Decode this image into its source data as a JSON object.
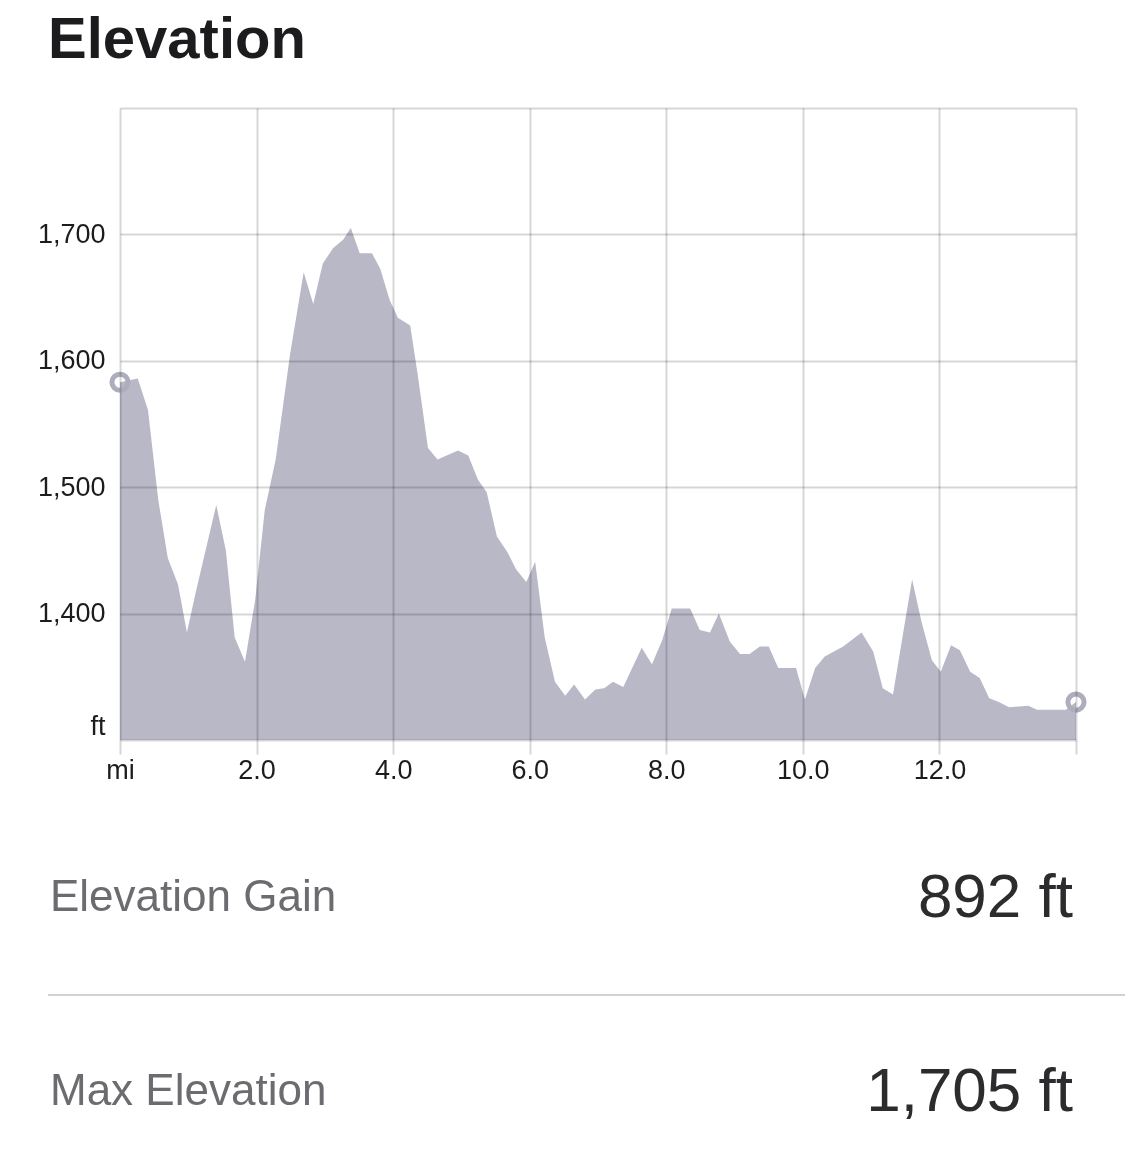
{
  "chart_data": {
    "type": "area",
    "title": "Elevation",
    "xlim": [
      0,
      14
    ],
    "xticks": [
      {
        "value": 0,
        "label": "mi"
      },
      {
        "value": 2,
        "label": "2.0"
      },
      {
        "value": 4,
        "label": "4.0"
      },
      {
        "value": 6,
        "label": "6.0"
      },
      {
        "value": 8,
        "label": "8.0"
      },
      {
        "value": 10,
        "label": "10.0"
      },
      {
        "value": 12,
        "label": "12.0"
      },
      {
        "value": 14,
        "label": null
      }
    ],
    "ylim": [
      1300,
      1800
    ],
    "yticks": [
      {
        "value": 1300,
        "label": "ft"
      },
      {
        "value": 1400,
        "label": "1,400"
      },
      {
        "value": 1500,
        "label": "1,500"
      },
      {
        "value": 1600,
        "label": "1,600"
      },
      {
        "value": 1700,
        "label": "1,700"
      },
      {
        "value": 1800,
        "label": null
      }
    ],
    "grid": true,
    "series": [
      {
        "color": "#b9b8c7",
        "x": [
          0,
          0.26,
          0.41,
          0.56,
          0.7,
          0.85,
          0.98,
          1.11,
          1.41,
          1.55,
          1.68,
          1.83,
          1.98,
          2.12,
          2.28,
          2.49,
          2.69,
          2.83,
          2.97,
          3.12,
          3.27,
          3.38,
          3.51,
          3.69,
          3.81,
          3.95,
          4.07,
          4.25,
          4.36,
          4.51,
          4.65,
          4.95,
          5.1,
          5.24,
          5.37,
          5.52,
          5.67,
          5.8,
          5.95,
          6.08,
          6.22,
          6.37,
          6.52,
          6.65,
          6.81,
          6.96,
          7.09,
          7.22,
          7.37,
          7.64,
          7.79,
          7.94,
          8.08,
          8.35,
          8.49,
          8.64,
          8.77,
          8.93,
          9.08,
          9.22,
          9.37,
          9.5,
          9.64,
          9.9,
          10.03,
          10.18,
          10.32,
          10.59,
          10.86,
          11.03,
          11.17,
          11.32,
          11.47,
          11.6,
          11.74,
          11.89,
          12.02,
          12.17,
          12.3,
          12.45,
          12.59,
          12.73,
          12.87,
          13.02,
          13.3,
          13.43,
          13.85,
          14
        ],
        "values": [
          1583,
          1586,
          1561,
          1490,
          1444,
          1423,
          1385,
          1417,
          1486,
          1450,
          1381,
          1362,
          1411,
          1482,
          1522,
          1605,
          1670,
          1645,
          1677,
          1689,
          1696,
          1705,
          1685,
          1685,
          1673,
          1648,
          1634,
          1628,
          1589,
          1531,
          1522,
          1529,
          1525,
          1506,
          1496,
          1461,
          1449,
          1435,
          1425,
          1441,
          1381,
          1346,
          1335,
          1344,
          1332,
          1340,
          1341,
          1346,
          1342,
          1373,
          1360,
          1379,
          1404,
          1404,
          1387,
          1385,
          1400,
          1378,
          1368,
          1368,
          1374,
          1374,
          1357,
          1357,
          1332,
          1357,
          1366,
          1374,
          1385,
          1370,
          1341,
          1336,
          1385,
          1427,
          1393,
          1363,
          1354,
          1375,
          1371,
          1354,
          1349,
          1333,
          1330,
          1326,
          1327,
          1324,
          1324,
          1330
        ]
      },
      {
        "type": "scatter",
        "color": "#aeadbd",
        "marker": "circle",
        "x": [
          0,
          14
        ],
        "values": [
          1583,
          1330
        ]
      }
    ],
    "annotations": [
      "Elevation Gain",
      "892 ft",
      "Max Elevation",
      "1,705 ft"
    ]
  }
}
